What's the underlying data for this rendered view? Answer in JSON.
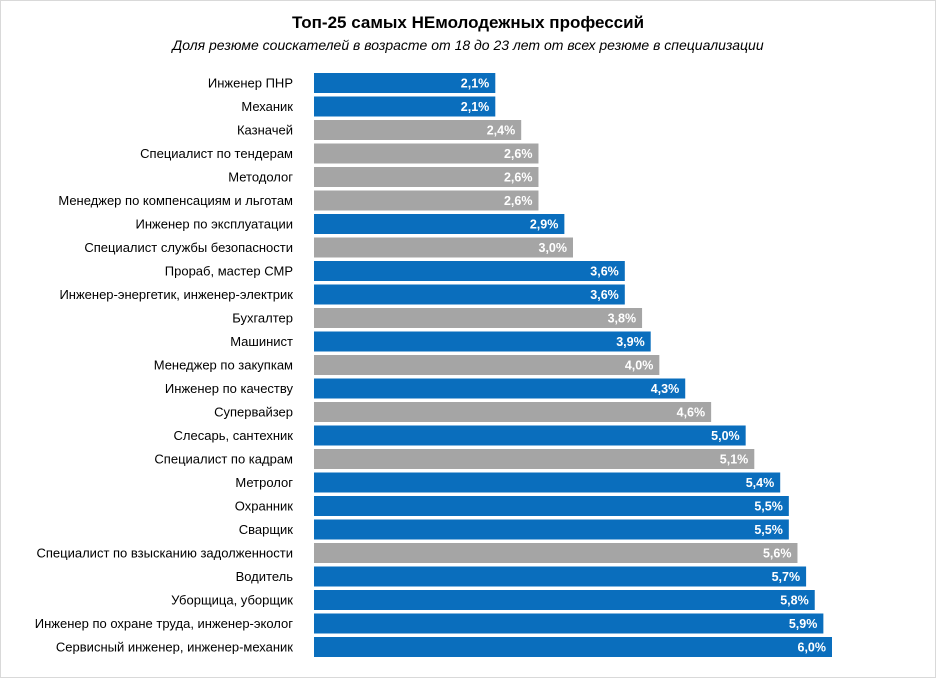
{
  "chart_data": {
    "type": "bar",
    "orientation": "horizontal",
    "title": "Топ-25 самых НЕмолодежных профессий",
    "subtitle": "Доля резюме соискателей в возрасте от 18 до 23 лет от всех резюме в специализации",
    "xlim": [
      0,
      6.0
    ],
    "grid": false,
    "legend": "none",
    "colors": {
      "blue": "#0a6ebd",
      "gray": "#a5a5a5"
    },
    "categories": [
      "Инженер ПНР",
      "Механик",
      "Казначей",
      "Специалист по тендерам",
      "Методолог",
      "Менеджер по компенсациям и льготам",
      "Инженер по эксплуатации",
      "Специалист службы безопасности",
      "Прораб, мастер СМР",
      "Инженер-энергетик, инженер-электрик",
      "Бухгалтер",
      "Машинист",
      "Менеджер по закупкам",
      "Инженер по качеству",
      "Супервайзер",
      "Слесарь, сантехник",
      "Специалист по кадрам",
      "Метролог",
      "Охранник",
      "Сварщик",
      "Специалист по взысканию задолженности",
      "Водитель",
      "Уборщица, уборщик",
      "Инженер по охране труда, инженер-эколог",
      "Сервисный инженер, инженер-механик"
    ],
    "values": [
      2.1,
      2.1,
      2.4,
      2.6,
      2.6,
      2.6,
      2.9,
      3.0,
      3.6,
      3.6,
      3.8,
      3.9,
      4.0,
      4.3,
      4.6,
      5.0,
      5.1,
      5.4,
      5.5,
      5.5,
      5.6,
      5.7,
      5.8,
      5.9,
      6.0
    ],
    "value_labels": [
      "2,1%",
      "2,1%",
      "2,4%",
      "2,6%",
      "2,6%",
      "2,6%",
      "2,9%",
      "3,0%",
      "3,6%",
      "3,6%",
      "3,8%",
      "3,9%",
      "4,0%",
      "4,3%",
      "4,6%",
      "5,0%",
      "5,1%",
      "5,4%",
      "5,5%",
      "5,5%",
      "5,6%",
      "5,7%",
      "5,8%",
      "5,9%",
      "6,0%"
    ],
    "bar_colors": [
      "blue",
      "blue",
      "gray",
      "gray",
      "gray",
      "gray",
      "blue",
      "gray",
      "blue",
      "blue",
      "gray",
      "blue",
      "gray",
      "blue",
      "gray",
      "blue",
      "gray",
      "blue",
      "blue",
      "blue",
      "gray",
      "blue",
      "blue",
      "blue",
      "blue"
    ]
  }
}
